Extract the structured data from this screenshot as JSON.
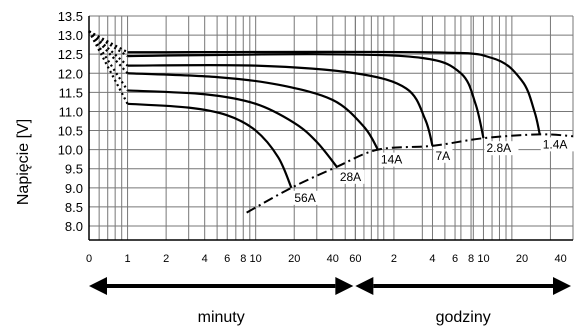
{
  "chart_data": {
    "type": "line",
    "title": "",
    "ylabel": "Napięcie [V]",
    "ylim": [
      8.0,
      13.5
    ],
    "yticks": [
      "13.5",
      "13.0",
      "12.5",
      "12.0",
      "11.5",
      "11.0",
      "10.5",
      "10.0",
      "9.5",
      "9.0",
      "8.5",
      "8.0"
    ],
    "x_scale": "log",
    "x_ticks": [
      {
        "label": "0",
        "minutes": 0.5
      },
      {
        "label": "1",
        "minutes": 1
      },
      {
        "label": "2",
        "minutes": 2
      },
      {
        "label": "4",
        "minutes": 4
      },
      {
        "label": "6",
        "minutes": 6
      },
      {
        "label": "8",
        "minutes": 8
      },
      {
        "label": "10",
        "minutes": 10
      },
      {
        "label": "20",
        "minutes": 20
      },
      {
        "label": "40",
        "minutes": 40
      },
      {
        "label": "60",
        "minutes": 60
      },
      {
        "label": "2",
        "minutes": 120
      },
      {
        "label": "4",
        "minutes": 240
      },
      {
        "label": "6",
        "minutes": 360
      },
      {
        "label": "8",
        "minutes": 480
      },
      {
        "label": "10",
        "minutes": 600
      },
      {
        "label": "20",
        "minutes": 1200
      },
      {
        "label": "40",
        "minutes": 2400
      }
    ],
    "ranges": [
      {
        "label": "minuty",
        "from_minutes": 0.5,
        "to_minutes": 60
      },
      {
        "label": "godziny",
        "from_minutes": 60,
        "to_minutes": 3000
      }
    ],
    "series": [
      {
        "name": "56A",
        "points": [
          [
            0.5,
            13.1
          ],
          [
            1,
            11.2
          ],
          [
            3,
            11.1
          ],
          [
            6,
            10.9
          ],
          [
            10,
            10.5
          ],
          [
            15,
            9.8
          ],
          [
            19,
            9.0
          ]
        ]
      },
      {
        "name": "28A",
        "points": [
          [
            0.5,
            13.1
          ],
          [
            1,
            11.55
          ],
          [
            4,
            11.45
          ],
          [
            10,
            11.2
          ],
          [
            20,
            10.7
          ],
          [
            30,
            10.2
          ],
          [
            43,
            9.55
          ]
        ]
      },
      {
        "name": "14A",
        "points": [
          [
            0.5,
            13.1
          ],
          [
            1,
            12.0
          ],
          [
            5,
            11.9
          ],
          [
            15,
            11.7
          ],
          [
            40,
            11.3
          ],
          [
            70,
            10.6
          ],
          [
            90,
            10.0
          ]
        ]
      },
      {
        "name": "7A",
        "points": [
          [
            0.5,
            13.1
          ],
          [
            1,
            12.2
          ],
          [
            10,
            12.2
          ],
          [
            60,
            12.0
          ],
          [
            150,
            11.6
          ],
          [
            210,
            10.8
          ],
          [
            240,
            10.1
          ]
        ]
      },
      {
        "name": "2.8A",
        "points": [
          [
            0.5,
            13.1
          ],
          [
            1,
            12.45
          ],
          [
            30,
            12.5
          ],
          [
            200,
            12.4
          ],
          [
            400,
            12.0
          ],
          [
            520,
            11.2
          ],
          [
            600,
            10.3
          ]
        ]
      },
      {
        "name": "1.4A",
        "points": [
          [
            0.5,
            13.1
          ],
          [
            1,
            12.55
          ],
          [
            200,
            12.55
          ],
          [
            700,
            12.4
          ],
          [
            1200,
            11.8
          ],
          [
            1500,
            11.0
          ],
          [
            1650,
            10.4
          ]
        ]
      }
    ],
    "end_voltage_curve": [
      [
        8.5,
        8.35
      ],
      [
        19,
        9.0
      ],
      [
        43,
        9.55
      ],
      [
        90,
        10.0
      ],
      [
        240,
        10.1
      ],
      [
        600,
        10.3
      ],
      [
        1650,
        10.4
      ],
      [
        3000,
        10.35
      ]
    ]
  }
}
